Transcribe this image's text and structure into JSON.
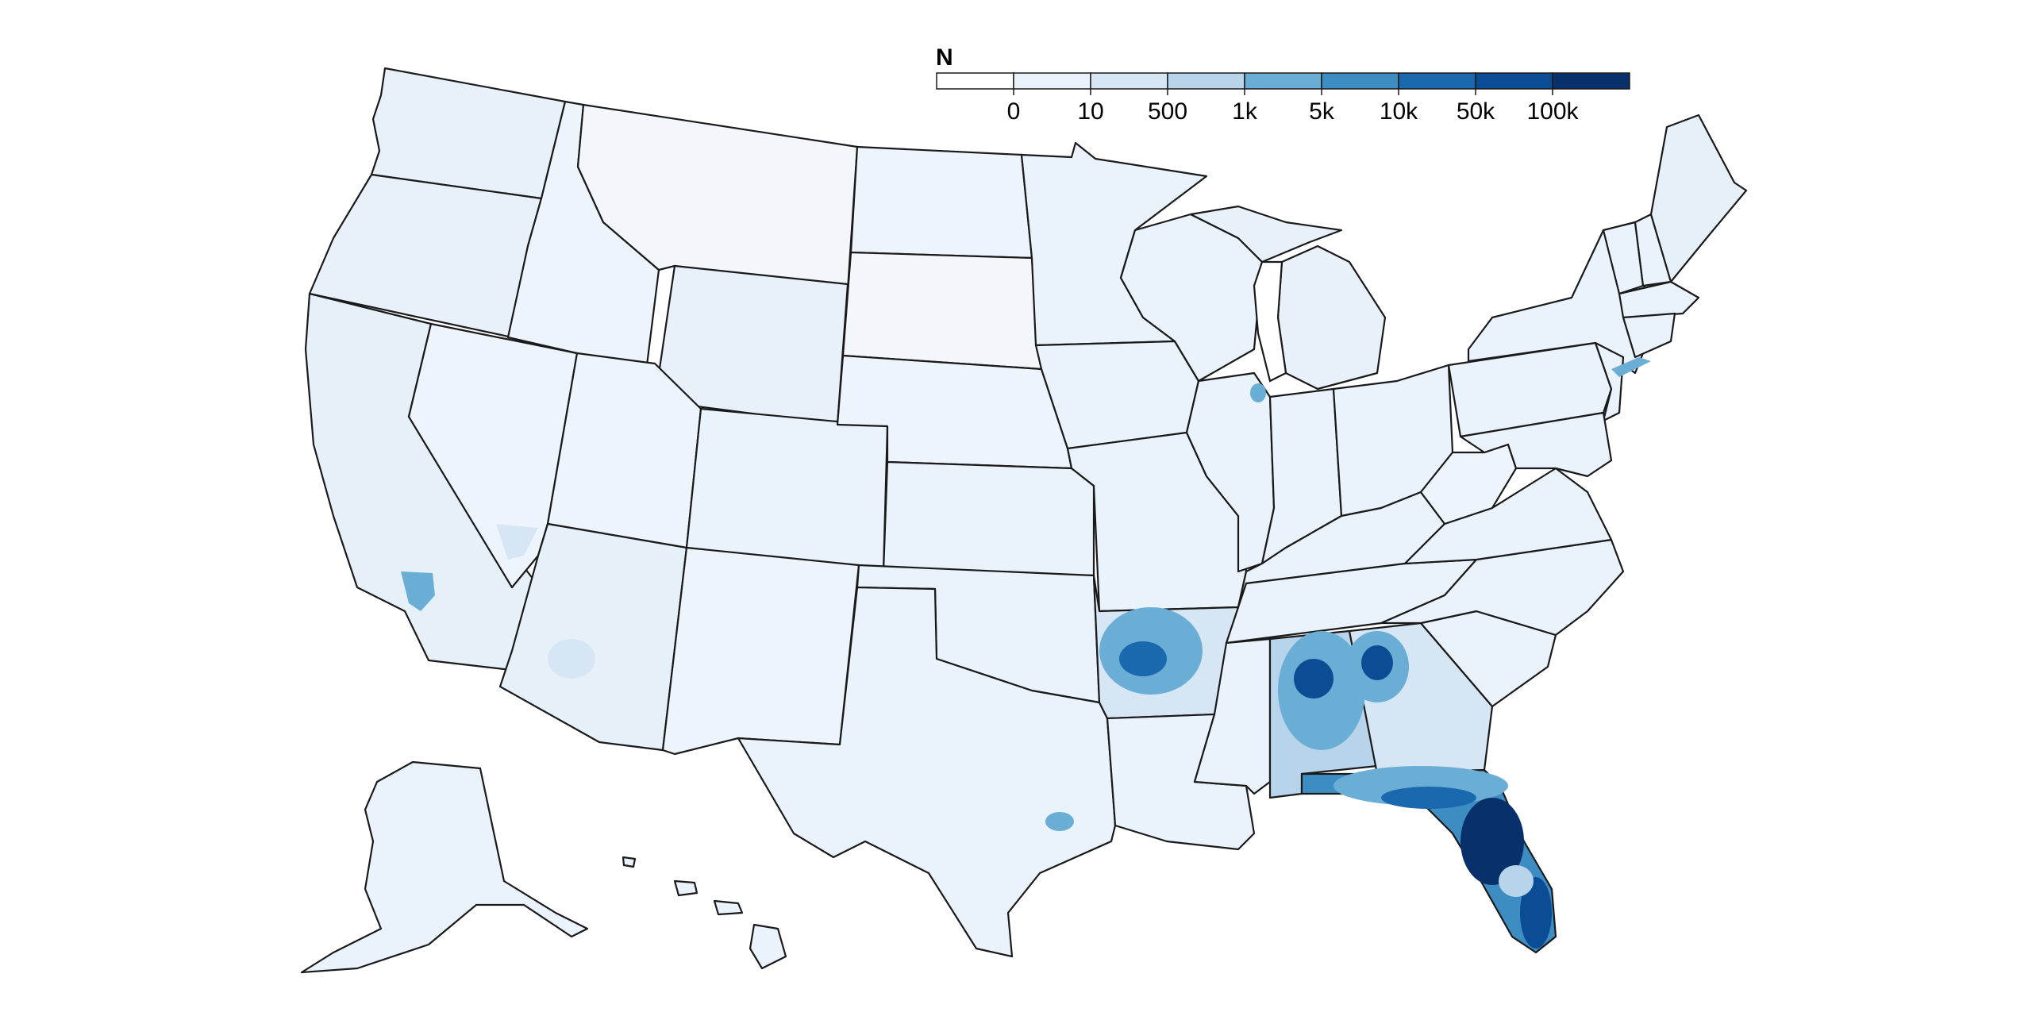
{
  "legend": {
    "title": "N",
    "ticks": [
      "0",
      "10",
      "500",
      "1k",
      "5k",
      "10k",
      "50k",
      "100k"
    ],
    "colors": [
      "#ffffff",
      "#eaf2fb",
      "#d7e6f5",
      "#b7d4ea",
      "#6aaed6",
      "#3d8dc3",
      "#1a68ae",
      "#0b4d94",
      "#08306b"
    ]
  },
  "map_data": {
    "type": "choropleth",
    "region": "United States counties",
    "hotspots": [
      {
        "area": "Florida",
        "level": "100k"
      },
      {
        "area": "Southern Georgia",
        "level": "10k"
      },
      {
        "area": "Alabama",
        "level": "50k"
      },
      {
        "area": "Western Georgia",
        "level": "50k"
      },
      {
        "area": "Arkansas",
        "level": "10k"
      },
      {
        "area": "Los Angeles",
        "level": "5k"
      },
      {
        "area": "Houston",
        "level": "5k"
      },
      {
        "area": "New York City",
        "level": "1k"
      },
      {
        "area": "Chicago",
        "level": "1k"
      }
    ]
  }
}
